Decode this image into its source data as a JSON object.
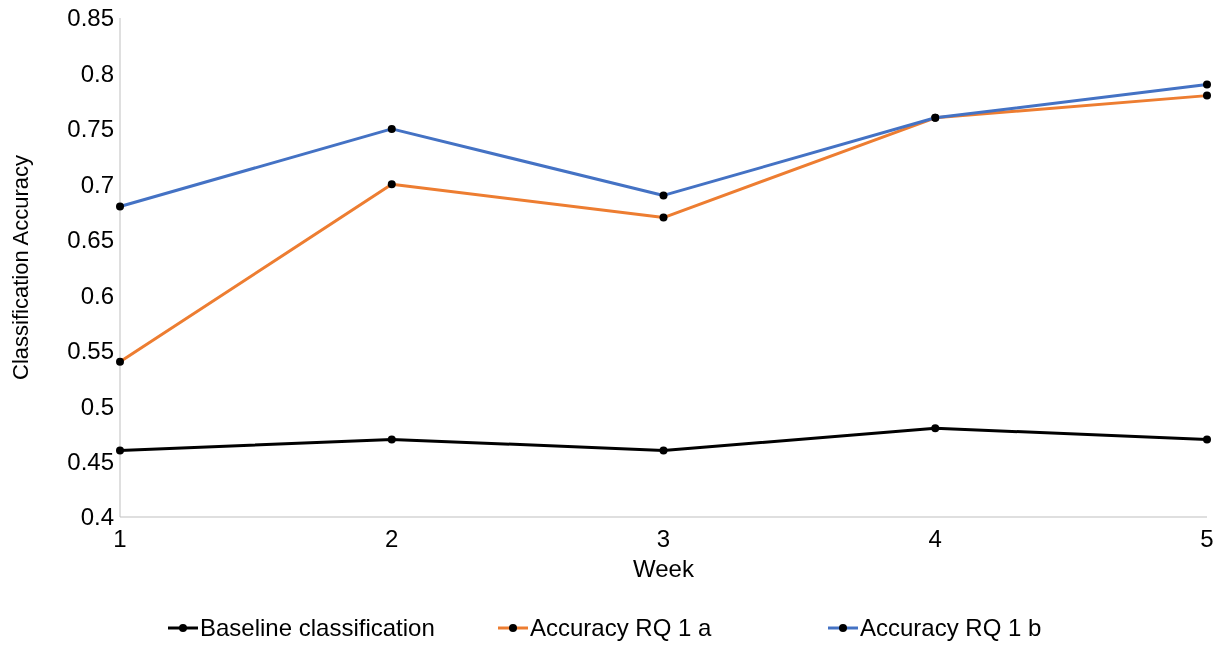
{
  "chart_data": {
    "type": "line",
    "xlabel": "Week",
    "ylabel": "Classification Accuracy",
    "x": [
      1,
      2,
      3,
      4,
      5
    ],
    "series": [
      {
        "name": "Baseline classification",
        "color": "#000000",
        "values": [
          0.46,
          0.47,
          0.46,
          0.48,
          0.47
        ]
      },
      {
        "name": "Accuracy RQ 1 a",
        "color": "#ed7d31",
        "values": [
          0.54,
          0.7,
          0.67,
          0.76,
          0.78
        ]
      },
      {
        "name": "Accuracy RQ 1 b",
        "color": "#4472c4",
        "values": [
          0.68,
          0.75,
          0.69,
          0.76,
          0.79
        ]
      }
    ],
    "xlim": [
      1,
      5
    ],
    "xticks": [
      1,
      2,
      3,
      4,
      5
    ],
    "ylim": [
      0.4,
      0.85
    ],
    "yticks": [
      0.4,
      0.45,
      0.5,
      0.55,
      0.6,
      0.65,
      0.7,
      0.75,
      0.8,
      0.85
    ],
    "grid": false,
    "legend": "bottom",
    "marker": "circle",
    "line_style": "solid"
  }
}
